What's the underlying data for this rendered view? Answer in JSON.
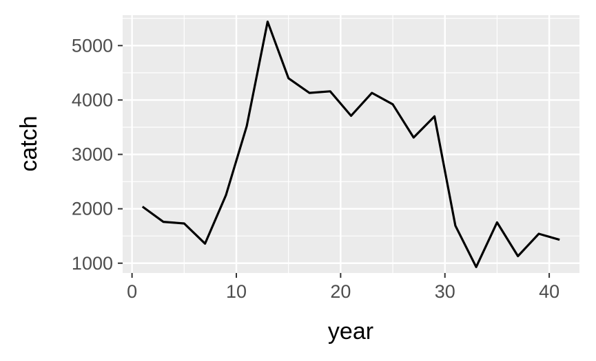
{
  "chart_data": {
    "type": "line",
    "title": "",
    "xlabel": "year",
    "ylabel": "catch",
    "xlim": [
      -0.9,
      42.9
    ],
    "ylim": [
      820,
      5560
    ],
    "xticks": [
      0,
      10,
      20,
      30,
      40
    ],
    "yticks": [
      1000,
      2000,
      3000,
      4000,
      5000
    ],
    "xtick_labels": [
      "0",
      "10",
      "20",
      "30",
      "40"
    ],
    "ytick_labels": [
      "1000",
      "2000",
      "3000",
      "4000",
      "5000"
    ],
    "grid": true,
    "legend": "none",
    "colors": {
      "panel_background": "#EBEBEB",
      "grid": "#FFFFFF",
      "line": "#000000",
      "tick_text": "#4D4D4D",
      "axis_title": "#000000",
      "tick_mark": "#333333"
    },
    "series": [
      {
        "x": [
          1,
          3,
          5,
          7,
          9,
          11,
          13,
          15,
          17,
          19,
          21,
          23,
          25,
          27,
          29,
          31,
          33,
          35,
          37,
          39,
          41
        ],
        "y": [
          2040,
          1760,
          1730,
          1360,
          2250,
          3520,
          5440,
          4400,
          4130,
          4160,
          3710,
          4130,
          3920,
          3310,
          3700,
          1690,
          930,
          1750,
          1130,
          1540,
          1430
        ]
      }
    ]
  }
}
